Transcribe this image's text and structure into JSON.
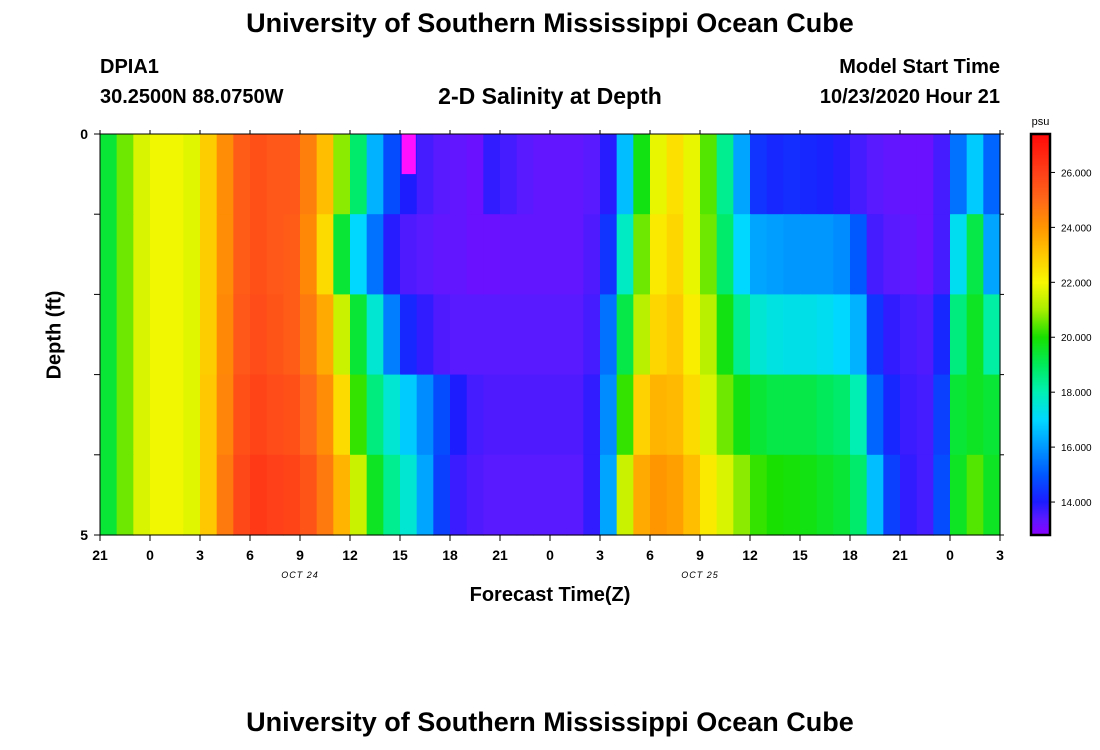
{
  "header": {
    "title": "University of Southern Mississippi Ocean Cube",
    "station_id": "DPIA1",
    "station_coords": "30.2500N 88.0750W",
    "subtitle": "2-D Salinity at Depth",
    "start_label": "Model Start Time",
    "start_value": "10/23/2020 Hour 21"
  },
  "footer": {
    "title": "University of Southern Mississippi Ocean Cube"
  },
  "chart_data": {
    "type": "heatmap",
    "title": "2-D Salinity at Depth",
    "xlabel": "Forecast Time(Z)",
    "ylabel": "Depth (ft)",
    "units": "psu",
    "ylim": [
      0,
      5
    ],
    "y_tick_labels": [
      "0",
      "5"
    ],
    "x_tick_labels": [
      "21",
      "0",
      "3",
      "6",
      "9",
      "12",
      "15",
      "18",
      "21",
      "0",
      "3",
      "6",
      "9",
      "12",
      "15",
      "18",
      "21",
      "0",
      "3"
    ],
    "date_labels": [
      {
        "text": "OCT 24",
        "hour_index": 12
      },
      {
        "text": "OCT 25",
        "hour_index": 36
      }
    ],
    "colorbar": {
      "min": 12.8,
      "max": 27.4,
      "tick_values": [
        14.0,
        16.0,
        18.0,
        20.0,
        22.0,
        24.0,
        26.0
      ],
      "tick_labels": [
        "14.000",
        "16.000",
        "18.000",
        "20.000",
        "22.000",
        "24.000",
        "26.000"
      ],
      "stops": [
        {
          "v": 12.8,
          "c": "#8a00ff"
        },
        {
          "v": 13.4,
          "c": "#5a1aff"
        },
        {
          "v": 14.0,
          "c": "#1c1cff"
        },
        {
          "v": 15.0,
          "c": "#0058ff"
        },
        {
          "v": 16.0,
          "c": "#0098ff"
        },
        {
          "v": 17.0,
          "c": "#00d8ff"
        },
        {
          "v": 18.0,
          "c": "#00f0b4"
        },
        {
          "v": 19.0,
          "c": "#00ea5a"
        },
        {
          "v": 20.0,
          "c": "#18e000"
        },
        {
          "v": 21.0,
          "c": "#a8ee00"
        },
        {
          "v": 22.0,
          "c": "#f8f800"
        },
        {
          "v": 23.0,
          "c": "#ffc800"
        },
        {
          "v": 24.0,
          "c": "#ff9600"
        },
        {
          "v": 25.0,
          "c": "#ff6818"
        },
        {
          "v": 26.0,
          "c": "#ff4018"
        },
        {
          "v": 27.4,
          "c": "#ff0808"
        }
      ],
      "highlight_color": "#ff10ff"
    },
    "depth_layers": 5,
    "time_hours": 54,
    "salinity_psu": [
      [
        19.4,
        20.6,
        21.6,
        21.9,
        21.9,
        21.7,
        22.9,
        24.2,
        25.3,
        25.6,
        25.4,
        25.4,
        24.5,
        23.2,
        20.8,
        18.8,
        16.4,
        14.8,
        14.0,
        13.6,
        13.4,
        13.3,
        13.2,
        13.8,
        13.6,
        13.4,
        13.3,
        13.3,
        13.3,
        13.4,
        13.9,
        16.6,
        19.8,
        21.8,
        22.5,
        21.8,
        20.4,
        18.4,
        16.2,
        14.4,
        14.2,
        14.3,
        14.2,
        14.1,
        13.9,
        13.6,
        13.4,
        13.3,
        13.2,
        13.2,
        13.6,
        15.4,
        16.8,
        15.2
      ],
      [
        19.4,
        20.6,
        21.6,
        21.9,
        21.9,
        21.7,
        22.9,
        24.2,
        25.3,
        25.6,
        25.4,
        25.3,
        24.3,
        22.6,
        19.4,
        17.0,
        15.4,
        13.9,
        13.5,
        13.4,
        13.3,
        13.3,
        13.2,
        13.2,
        13.3,
        13.3,
        13.3,
        13.3,
        13.3,
        13.5,
        14.4,
        17.8,
        20.6,
        22.3,
        22.7,
        21.8,
        20.6,
        18.8,
        17.0,
        16.2,
        16.1,
        16.0,
        16.0,
        16.0,
        15.8,
        15.0,
        13.6,
        13.4,
        13.3,
        13.2,
        13.6,
        17.2,
        19.2,
        16.2
      ],
      [
        19.4,
        20.6,
        21.6,
        21.9,
        21.9,
        21.7,
        22.9,
        24.3,
        25.4,
        25.7,
        25.5,
        25.3,
        24.6,
        23.6,
        21.4,
        19.4,
        17.6,
        15.6,
        14.2,
        13.8,
        13.5,
        13.4,
        13.4,
        13.4,
        13.4,
        13.4,
        13.4,
        13.4,
        13.4,
        13.6,
        15.4,
        19.2,
        21.2,
        22.7,
        23.0,
        22.2,
        21.2,
        19.8,
        18.4,
        17.6,
        17.4,
        17.3,
        17.3,
        17.2,
        17.0,
        16.4,
        14.4,
        13.8,
        13.6,
        13.5,
        14.2,
        18.6,
        19.6,
        18.2
      ],
      [
        19.4,
        20.6,
        21.6,
        21.9,
        21.9,
        21.7,
        23.0,
        24.4,
        25.6,
        25.9,
        25.7,
        25.6,
        25.0,
        24.2,
        22.6,
        20.2,
        18.6,
        17.6,
        16.8,
        15.8,
        14.8,
        14.0,
        13.6,
        13.5,
        13.5,
        13.5,
        13.5,
        13.5,
        13.5,
        13.8,
        15.8,
        20.2,
        22.8,
        23.4,
        23.3,
        22.6,
        21.6,
        20.6,
        19.8,
        19.4,
        19.2,
        19.2,
        19.2,
        19.0,
        18.8,
        18.0,
        15.2,
        14.2,
        13.7,
        13.6,
        14.6,
        19.4,
        19.6,
        19.4
      ],
      [
        19.4,
        20.6,
        21.6,
        21.9,
        21.9,
        21.7,
        23.0,
        24.6,
        25.8,
        26.2,
        26.0,
        25.9,
        25.5,
        24.6,
        23.4,
        21.4,
        19.6,
        18.4,
        17.6,
        16.2,
        14.6,
        13.7,
        13.5,
        13.4,
        13.4,
        13.4,
        13.4,
        13.4,
        13.4,
        13.8,
        16.2,
        21.4,
        23.6,
        24.0,
        23.8,
        23.2,
        22.3,
        21.6,
        20.8,
        20.2,
        20.0,
        19.9,
        19.8,
        19.6,
        19.4,
        18.8,
        16.6,
        14.6,
        13.8,
        13.6,
        14.8,
        19.6,
        20.4,
        19.6
      ]
    ]
  }
}
